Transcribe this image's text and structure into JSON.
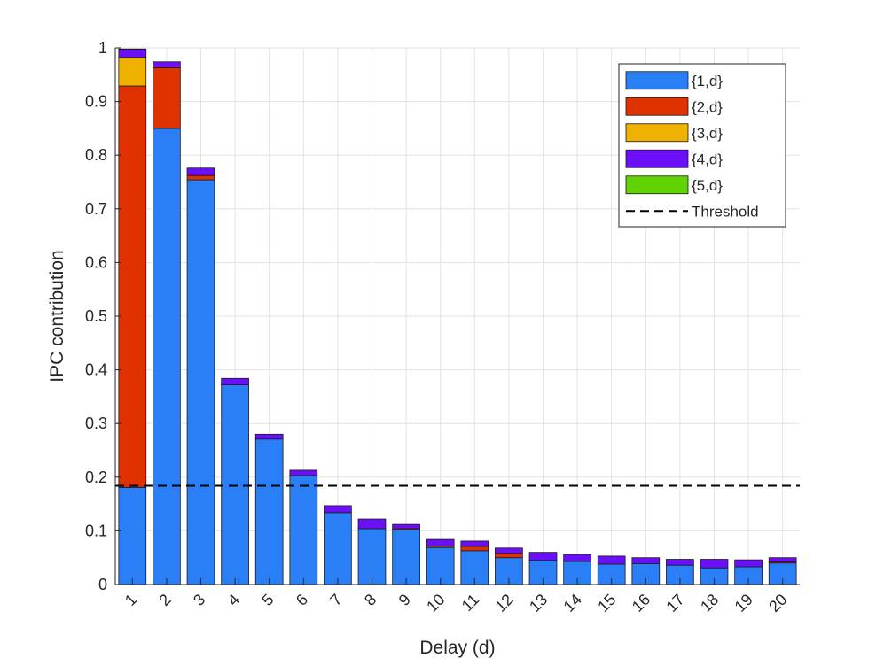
{
  "chart_data": {
    "type": "bar",
    "stacked": true,
    "title": "",
    "xlabel": "Delay (d)",
    "ylabel": "IPC contribution",
    "ylim": [
      0,
      1
    ],
    "yticks": [
      "0",
      "0.1",
      "0.2",
      "0.3",
      "0.4",
      "0.5",
      "0.6",
      "0.7",
      "0.8",
      "0.9",
      "1"
    ],
    "ytick_values": [
      0,
      0.1,
      0.2,
      0.3,
      0.4,
      0.5,
      0.6,
      0.7,
      0.8,
      0.9,
      1
    ],
    "grid": true,
    "legend_position": "top-right",
    "categories": [
      "1",
      "2",
      "3",
      "4",
      "5",
      "6",
      "7",
      "8",
      "9",
      "10",
      "11",
      "12",
      "13",
      "14",
      "15",
      "16",
      "17",
      "18",
      "19",
      "20"
    ],
    "series": [
      {
        "name": "{1,d}",
        "color": "#2a7ff7",
        "values": [
          0.181,
          0.85,
          0.754,
          0.372,
          0.271,
          0.203,
          0.134,
          0.104,
          0.102,
          0.069,
          0.063,
          0.05,
          0.045,
          0.043,
          0.038,
          0.039,
          0.036,
          0.031,
          0.033,
          0.04
        ]
      },
      {
        "name": "{2,d}",
        "color": "#e03200",
        "values": [
          0.748,
          0.113,
          0.008,
          0.0,
          0.0,
          0.0,
          0.0,
          0.0,
          0.002,
          0.003,
          0.008,
          0.008,
          0.0,
          0.0,
          0.0,
          0.0,
          0.0,
          0.0,
          0.0,
          0.002
        ]
      },
      {
        "name": "{3,d}",
        "color": "#f0b000",
        "values": [
          0.053,
          0.0,
          0.0,
          0.0,
          0.0,
          0.0,
          0.0,
          0.0,
          0.0,
          0.0,
          0.0,
          0.0,
          0.0,
          0.0,
          0.0,
          0.0,
          0.0,
          0.0,
          0.0,
          0.0
        ]
      },
      {
        "name": "{4,d}",
        "color": "#6a0ff7",
        "values": [
          0.015,
          0.011,
          0.014,
          0.012,
          0.009,
          0.01,
          0.013,
          0.018,
          0.008,
          0.012,
          0.01,
          0.01,
          0.015,
          0.013,
          0.015,
          0.011,
          0.011,
          0.016,
          0.013,
          0.008
        ]
      },
      {
        "name": "{5,d}",
        "color": "#5fd400",
        "values": [
          0.001,
          0.0,
          0.0,
          0.0,
          0.0,
          0.0,
          0.0,
          0.0,
          0.0,
          0.0,
          0.0,
          0.0,
          0.0,
          0.0,
          0.0,
          0.0,
          0.0,
          0.0,
          0.0,
          0.0
        ]
      }
    ],
    "threshold": {
      "name": "Threshold",
      "value": 0.184,
      "color": "#000000",
      "style": "dashed"
    }
  }
}
